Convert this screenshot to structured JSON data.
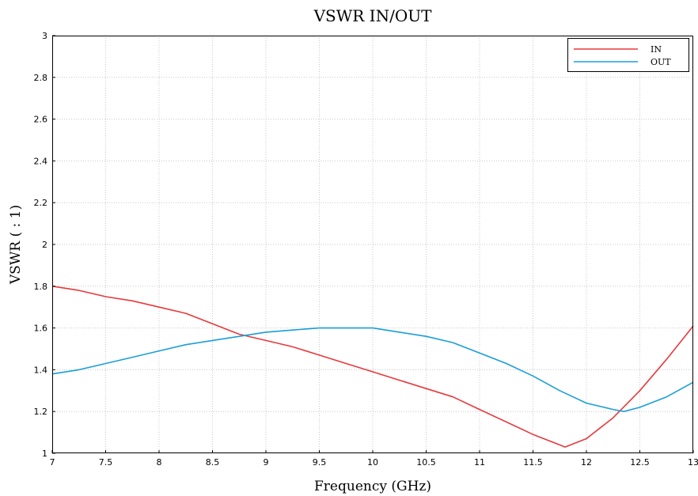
{
  "chart_data": {
    "type": "line",
    "title": "VSWR IN/OUT",
    "xlabel": "Frequency (GHz)",
    "ylabel": "VSWR ( : 1)",
    "xlim": [
      7,
      13
    ],
    "ylim": [
      1,
      3
    ],
    "xticks": [
      7,
      7.5,
      8,
      8.5,
      9,
      9.5,
      10,
      10.5,
      11,
      11.5,
      12,
      12.5,
      13
    ],
    "xtick_labels": [
      "7",
      "7.5",
      "8",
      "8.5",
      "9",
      "9.5",
      "10",
      "10.5",
      "11",
      "11.5",
      "12",
      "12.5",
      "13"
    ],
    "yticks": [
      1,
      1.2,
      1.4,
      1.6,
      1.8,
      2,
      2.2,
      2.4,
      2.6,
      2.8,
      3
    ],
    "ytick_labels": [
      "1",
      "1.2",
      "1.4",
      "1.6",
      "1.8",
      "2",
      "2.2",
      "2.4",
      "2.6",
      "2.8",
      "3"
    ],
    "grid": true,
    "legend": "top-right",
    "series": [
      {
        "name": "IN",
        "color": "#e8393c",
        "x": [
          7.0,
          7.25,
          7.5,
          7.75,
          8.0,
          8.25,
          8.5,
          8.75,
          9.0,
          9.25,
          9.5,
          9.75,
          10.0,
          10.25,
          10.5,
          10.75,
          11.0,
          11.25,
          11.5,
          11.75,
          11.8,
          12.0,
          12.25,
          12.5,
          12.75,
          13.0
        ],
        "values": [
          1.8,
          1.78,
          1.75,
          1.73,
          1.7,
          1.67,
          1.62,
          1.57,
          1.54,
          1.51,
          1.47,
          1.43,
          1.39,
          1.35,
          1.31,
          1.27,
          1.21,
          1.15,
          1.09,
          1.04,
          1.03,
          1.07,
          1.17,
          1.3,
          1.45,
          1.61
        ]
      },
      {
        "name": "OUT",
        "color": "#1a9ed9",
        "x": [
          7.0,
          7.25,
          7.5,
          7.75,
          8.0,
          8.25,
          8.5,
          8.75,
          9.0,
          9.25,
          9.5,
          9.75,
          10.0,
          10.25,
          10.5,
          10.75,
          11.0,
          11.25,
          11.5,
          11.75,
          12.0,
          12.25,
          12.35,
          12.5,
          12.75,
          13.0
        ],
        "values": [
          1.38,
          1.4,
          1.43,
          1.46,
          1.49,
          1.52,
          1.54,
          1.56,
          1.58,
          1.59,
          1.6,
          1.6,
          1.6,
          1.58,
          1.56,
          1.53,
          1.48,
          1.43,
          1.37,
          1.3,
          1.24,
          1.21,
          1.2,
          1.22,
          1.27,
          1.34
        ]
      }
    ]
  }
}
